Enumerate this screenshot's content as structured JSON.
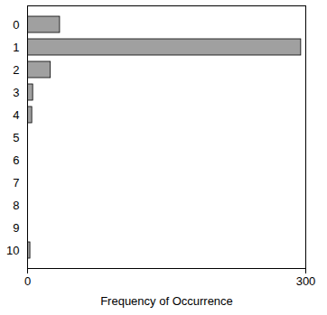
{
  "chart_data": {
    "type": "bar",
    "orientation": "horizontal",
    "categories": [
      "0",
      "1",
      "2",
      "3",
      "4",
      "5",
      "6",
      "7",
      "8",
      "9",
      "10"
    ],
    "values": [
      35,
      295,
      25,
      6,
      5,
      0,
      0,
      0,
      0,
      0,
      3
    ],
    "color": "#a0a0a0",
    "x_label": "Frequency of Occurrence",
    "xlim": [
      0,
      300
    ],
    "xticks": [
      0,
      300
    ],
    "grid": false
  }
}
